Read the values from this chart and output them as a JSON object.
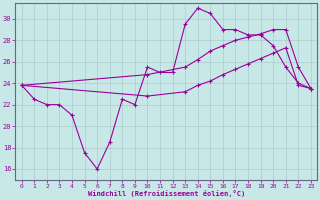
{
  "xlabel": "Windchill (Refroidissement éolien,°C)",
  "bg_color": "#c8e8e8",
  "line_color": "#990099",
  "grid_color": "#aacccc",
  "axis_color": "#666688",
  "xlim": [
    -0.5,
    23.5
  ],
  "ylim": [
    15.0,
    31.5
  ],
  "yticks": [
    16,
    18,
    20,
    22,
    24,
    26,
    28,
    30
  ],
  "xticks": [
    0,
    1,
    2,
    3,
    4,
    5,
    6,
    7,
    8,
    9,
    10,
    11,
    12,
    13,
    14,
    15,
    16,
    17,
    18,
    19,
    20,
    21,
    22,
    23
  ],
  "line1_x": [
    0,
    1,
    2,
    3,
    4,
    5,
    6,
    7,
    8,
    9,
    10,
    11,
    12,
    13,
    14,
    15,
    16,
    17,
    18,
    19,
    20,
    21,
    22,
    23
  ],
  "line1_y": [
    23.8,
    22.5,
    22.0,
    22.0,
    21.0,
    17.5,
    16.0,
    18.5,
    22.5,
    22.0,
    25.5,
    25.0,
    25.0,
    29.5,
    31.0,
    30.5,
    29.0,
    29.0,
    28.5,
    28.5,
    27.5,
    25.5,
    24.0,
    23.5
  ],
  "line2_x": [
    0,
    10,
    13,
    14,
    15,
    16,
    17,
    18,
    19,
    20,
    21,
    22,
    23
  ],
  "line2_y": [
    23.8,
    24.8,
    25.5,
    26.2,
    27.0,
    27.5,
    28.0,
    28.3,
    28.6,
    29.0,
    29.0,
    25.5,
    23.5
  ],
  "line3_x": [
    0,
    10,
    13,
    14,
    15,
    16,
    17,
    18,
    19,
    20,
    21,
    22,
    23
  ],
  "line3_y": [
    23.8,
    22.8,
    23.2,
    23.8,
    24.2,
    24.8,
    25.3,
    25.8,
    26.3,
    26.8,
    27.3,
    23.8,
    23.5
  ]
}
